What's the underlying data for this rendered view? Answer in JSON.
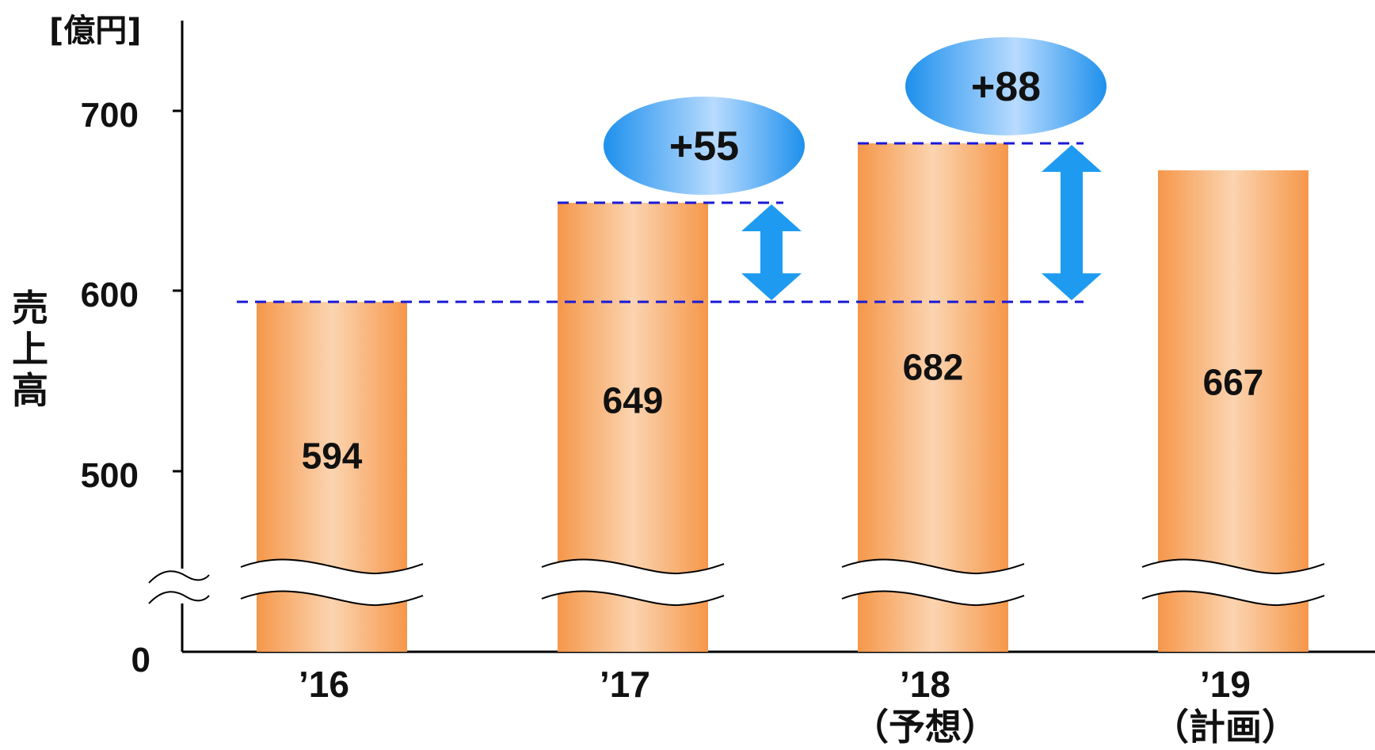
{
  "chart_data": {
    "type": "bar",
    "unit": "[億円]",
    "ylabel": "売上高",
    "y_ticks": [
      "0",
      "500",
      "600",
      "700"
    ],
    "axis_break": true,
    "ylim": [
      0,
      750
    ],
    "categories": [
      {
        "label": "’16",
        "sub": ""
      },
      {
        "label": "’17",
        "sub": ""
      },
      {
        "label": "’18",
        "sub": "（予想）"
      },
      {
        "label": "’19",
        "sub": "（計画）"
      }
    ],
    "values": [
      594,
      649,
      682,
      667
    ],
    "value_labels": [
      "594",
      "649",
      "682",
      "667"
    ],
    "differences": [
      {
        "label": "+55",
        "from_index": 0,
        "to_index": 1
      },
      {
        "label": "+88",
        "from_index": 0,
        "to_index": 2
      }
    ],
    "colors": {
      "bar_edge": "#f5974a",
      "bar_center": "#fbd4b0",
      "reference_line": "#1a1ad6",
      "arrow": "#1e9bf0",
      "bubble_dark": "#1e90ec",
      "bubble_light": "#b8dbff"
    }
  }
}
